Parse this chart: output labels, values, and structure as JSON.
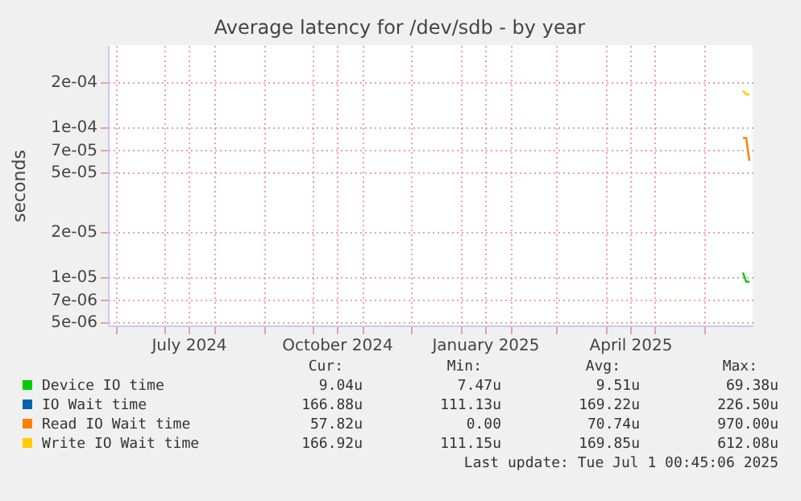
{
  "chart_data": {
    "type": "line",
    "title": "Average latency for /dev/sdb - by year",
    "ylabel": "seconds",
    "x": [
      "2025-06-25",
      "2025-06-27",
      "2025-06-29"
    ],
    "series": [
      {
        "name": "Device IO time",
        "color": "#00cc00",
        "values": [
          1.06e-05,
          9.2e-06,
          9.2e-06
        ]
      },
      {
        "name": "IO Wait time",
        "color": "#0066b3",
        "values": [
          null,
          null,
          null
        ]
      },
      {
        "name": "Read IO Wait time",
        "color": "#ff8000",
        "values": [
          8.4e-05,
          8.4e-05,
          5.9e-05
        ]
      },
      {
        "name": "Write IO Wait time",
        "color": "#ffcc00",
        "values": [
          0.000174,
          0.000164,
          0.000164
        ]
      }
    ],
    "log": "y",
    "grid": true,
    "legend": "bottom",
    "ylim": [
      4.7e-06,
      0.00035
    ],
    "yticks": [
      {
        "value": 5e-06,
        "label": "5e-06"
      },
      {
        "value": 7e-06,
        "label": "7e-06"
      },
      {
        "value": 1e-05,
        "label": "1e-05"
      },
      {
        "value": 2e-05,
        "label": "2e-05"
      },
      {
        "value": 5e-05,
        "label": "5e-05"
      },
      {
        "value": 7e-05,
        "label": "7e-05"
      },
      {
        "value": 0.0001,
        "label": "1e-04"
      },
      {
        "value": 0.0002,
        "label": "2e-04"
      }
    ],
    "xlim": [
      "2024-05-27",
      "2025-07-01"
    ],
    "xticks": [
      {
        "value": "2024-06-01",
        "label": null
      },
      {
        "value": "2024-07-01",
        "label": null
      },
      {
        "value": "2024-07-16",
        "label": "July 2024"
      },
      {
        "value": "2024-08-01",
        "label": null
      },
      {
        "value": "2024-09-01",
        "label": null
      },
      {
        "value": "2024-10-01",
        "label": null
      },
      {
        "value": "2024-10-16",
        "label": "October 2024"
      },
      {
        "value": "2024-11-01",
        "label": null
      },
      {
        "value": "2024-12-01",
        "label": null
      },
      {
        "value": "2025-01-01",
        "label": null
      },
      {
        "value": "2025-01-16",
        "label": "January 2025"
      },
      {
        "value": "2025-02-01",
        "label": null
      },
      {
        "value": "2025-03-01",
        "label": null
      },
      {
        "value": "2025-04-01",
        "label": null
      },
      {
        "value": "2025-04-16",
        "label": "April 2025"
      },
      {
        "value": "2025-05-01",
        "label": null
      },
      {
        "value": "2025-06-01",
        "label": null
      }
    ],
    "annotations": [
      "Cur:",
      "Min:",
      "Avg:",
      "Max:",
      "9.04u",
      "7.47u",
      "9.51u",
      "69.38u",
      "166.88u",
      "111.13u",
      "169.22u",
      "226.50u",
      "57.82u",
      "0.00",
      "70.74u",
      "970.00u",
      "166.92u",
      "111.15u",
      "169.85u",
      "612.08u",
      "Last update: Tue Jul  1 00:45:06 2025"
    ]
  }
}
